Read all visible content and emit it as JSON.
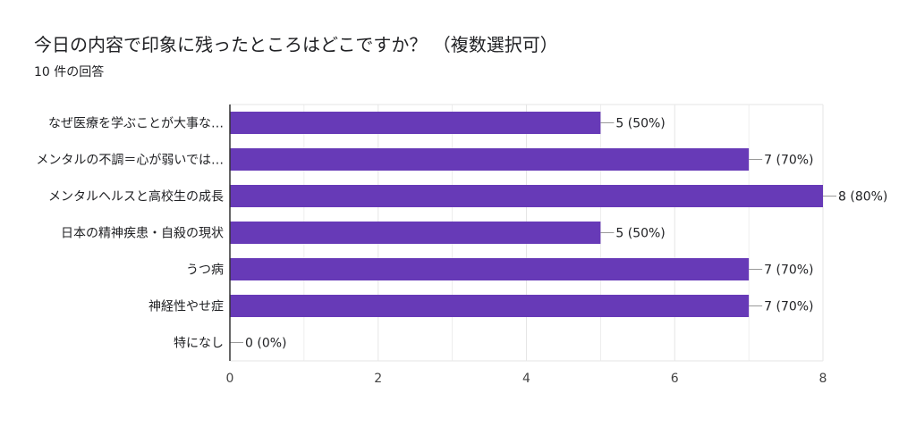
{
  "title": "今日の内容で印象に残ったところはどこですか？ （複数選択可）",
  "subtitle": "10 件の回答",
  "colors": {
    "bar": "#673ab7",
    "grid": "#e6e6e6",
    "axis": "#333333"
  },
  "chart_data": {
    "type": "bar",
    "orientation": "horizontal",
    "categories": [
      "なぜ医療を学ぶことが大事な…",
      "メンタルの不調＝心が弱いでは…",
      "メンタルヘルスと高校生の成長",
      "日本の精神疾患・自殺の現状",
      "うつ病",
      "神経性やせ症",
      "特になし"
    ],
    "values": [
      5,
      7,
      8,
      5,
      7,
      7,
      0
    ],
    "value_labels": [
      "5 (50%)",
      "7 (70%)",
      "8 (80%)",
      "5 (50%)",
      "7 (70%)",
      "7 (70%)",
      "0 (0%)"
    ],
    "xlim": [
      0,
      8
    ],
    "xticks": [
      "0",
      "2",
      "4",
      "6",
      "8"
    ],
    "grid": true
  }
}
